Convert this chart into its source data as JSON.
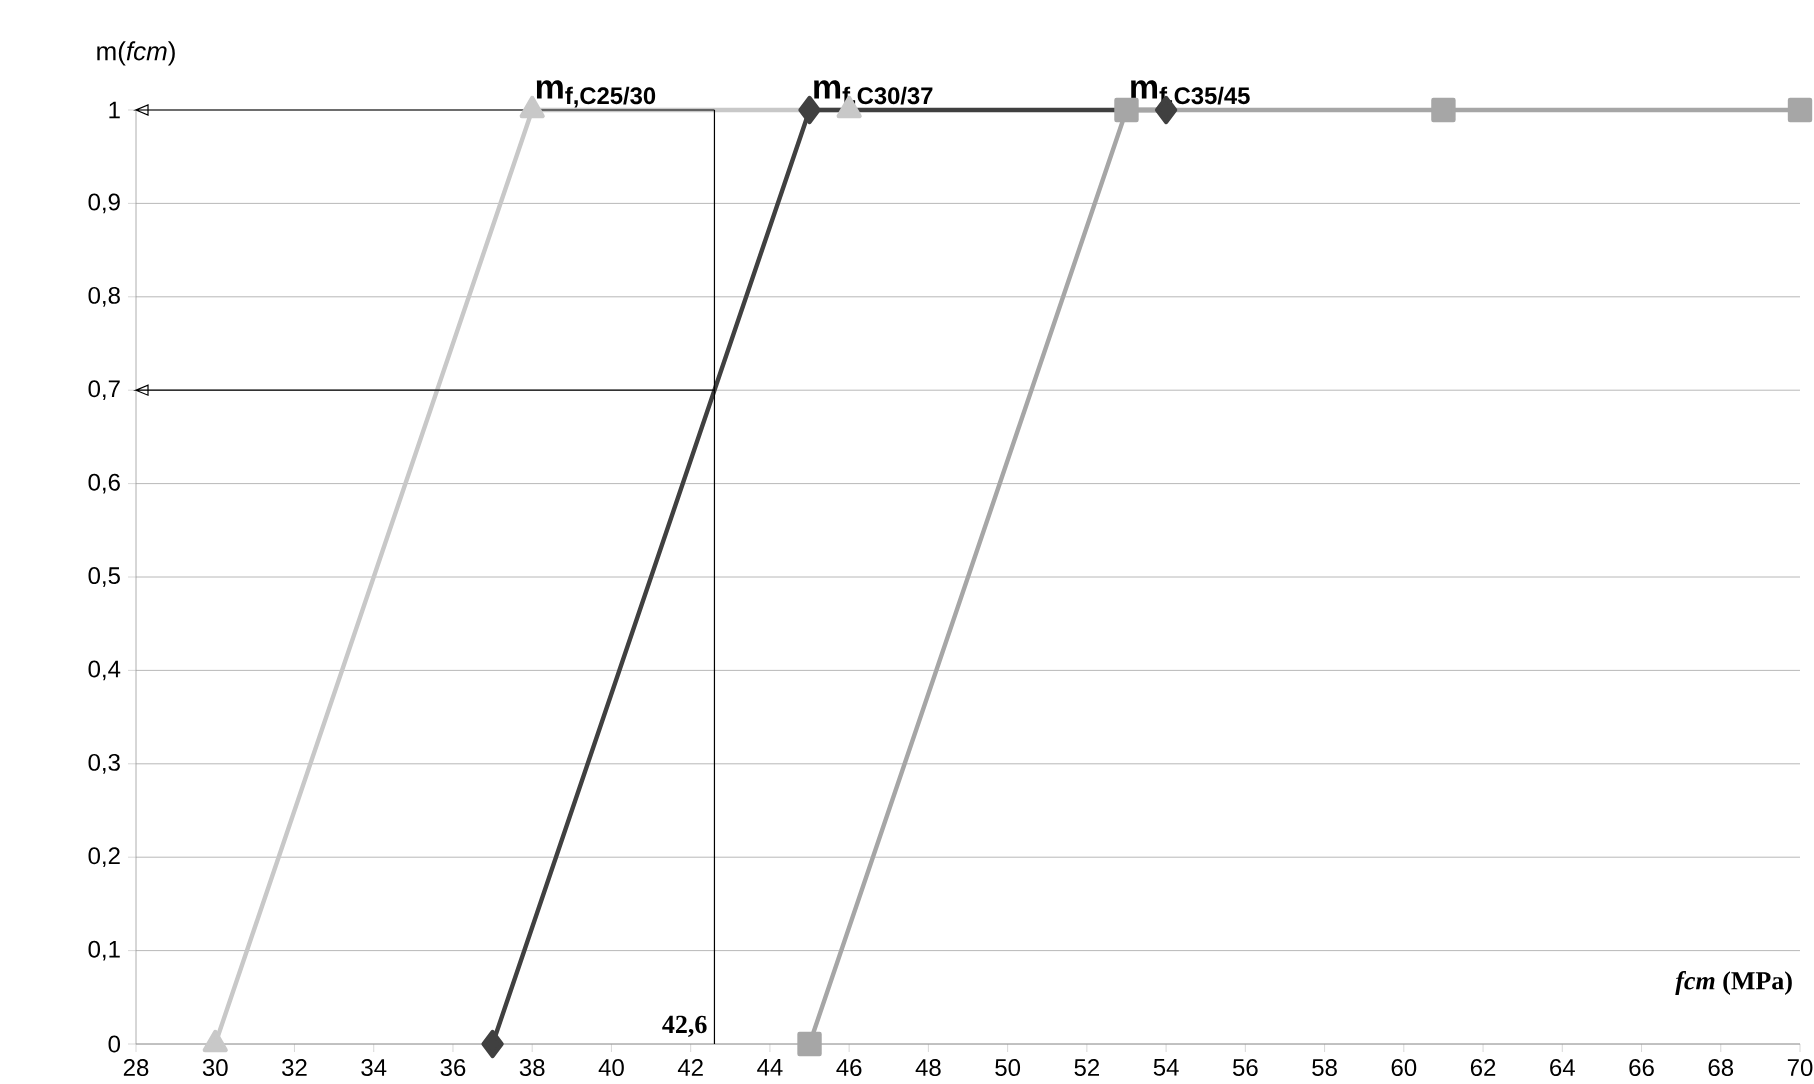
{
  "chart_data": {
    "type": "line",
    "xlabel": "*fcm* (MPa)",
    "ylabel": "m(*fcm*)",
    "xlim": [
      28,
      70
    ],
    "xticks": [
      28,
      30,
      32,
      34,
      36,
      38,
      40,
      42,
      44,
      46,
      48,
      50,
      52,
      54,
      56,
      58,
      60,
      62,
      64,
      66,
      68,
      70
    ],
    "ylim": [
      0,
      1
    ],
    "yticks": [
      0,
      {
        "value": 0.1,
        "label": "0,1"
      },
      {
        "value": 0.2,
        "label": "0,2"
      },
      {
        "value": 0.3,
        "label": "0,3"
      },
      {
        "value": 0.4,
        "label": "0,4"
      },
      {
        "value": 0.5,
        "label": "0,5"
      },
      {
        "value": 0.6,
        "label": "0,6"
      },
      {
        "value": 0.7,
        "label": "0,7"
      },
      {
        "value": 0.8,
        "label": "0,8"
      },
      {
        "value": 0.9,
        "label": "0,9"
      },
      1
    ],
    "grid": "y",
    "series": [
      {
        "name": "m$_{f,C25/30}$",
        "color": "#c8c8c8",
        "marker": "triangle",
        "x": [
          30,
          38,
          46
        ],
        "values": [
          0,
          1,
          1
        ]
      },
      {
        "name": "m$_{f,C30/37}$",
        "color": "#404040",
        "marker": "diamond",
        "x": [
          37,
          45,
          54
        ],
        "values": [
          0,
          1,
          1
        ]
      },
      {
        "name": "m$_{f,C35/45}$",
        "color": "#a6a6a6",
        "marker": "square",
        "x": [
          45,
          53,
          61,
          70
        ],
        "values": [
          0,
          1,
          1,
          1
        ]
      }
    ],
    "ref_lines": [
      {
        "axis": "x",
        "value": 42.6,
        "label": "42,6",
        "color": "#000000"
      },
      {
        "axis": "y",
        "value": 1,
        "color": "#000000"
      },
      {
        "axis": "y",
        "value": 0.7,
        "color": "#000000"
      }
    ]
  }
}
